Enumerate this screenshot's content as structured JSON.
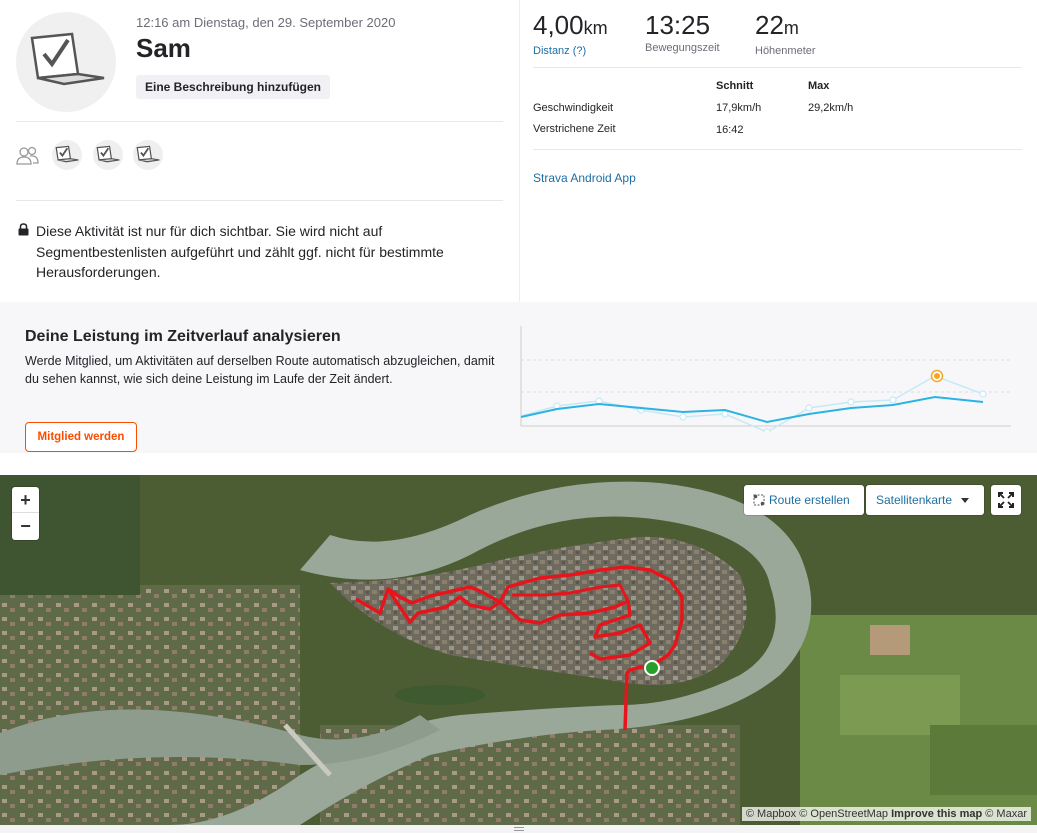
{
  "activity": {
    "timestamp": "12:16 am Dienstag, den 29. September 2020",
    "athlete_name": "Sam",
    "add_description_label": "Eine Beschreibung hinzufügen",
    "privacy_notice": "Diese Aktivität ist nur für dich sichtbar. Sie wird nicht auf Segmentbestenlisten aufgeführt und zählt ggf. nicht für bestimmte Herausforderungen."
  },
  "stats": {
    "distance": {
      "value": "4,00",
      "unit": "km",
      "label": "Distanz (?)"
    },
    "moving_time": {
      "value": "13:25",
      "label": "Bewegungszeit"
    },
    "elevation": {
      "value": "22",
      "unit": "m",
      "label": "Höhenmeter"
    },
    "table": {
      "headers": [
        "Schnitt",
        "Max"
      ],
      "rows": [
        {
          "label": "Geschwindigkeit",
          "avg": "17,9km/h",
          "max": "29,2km/h"
        },
        {
          "label": "Verstrichene Zeit",
          "avg": "16:42",
          "max": ""
        }
      ]
    },
    "device_link": "Strava Android App"
  },
  "analyze": {
    "title": "Deine Leistung im Zeitverlauf analysieren",
    "text": "Werde Mitglied, um Aktivitäten auf derselben Route automatisch abzugleichen, damit du sehen kannst, wie sich deine Leistung im Laufe der Zeit ändert.",
    "cta_label": "Mitglied werden"
  },
  "map": {
    "zoom_in": "+",
    "zoom_out": "−",
    "create_route_label": "Route erstellen",
    "map_type_label": "Satellitenkarte",
    "attribution": {
      "mapbox": "© Mapbox",
      "osm": "© OpenStreetMap",
      "improve": "Improve this map",
      "maxar": "© Maxar"
    }
  },
  "colors": {
    "brand": "#fc4c02",
    "link": "#1d6fa3",
    "route": "#e8141c",
    "trend_line": "#2bb3e3"
  },
  "icons": [
    "athlete-avatar-icon",
    "group-icon",
    "lock-icon",
    "route-icon",
    "fullscreen-icon",
    "start-marker-icon"
  ]
}
